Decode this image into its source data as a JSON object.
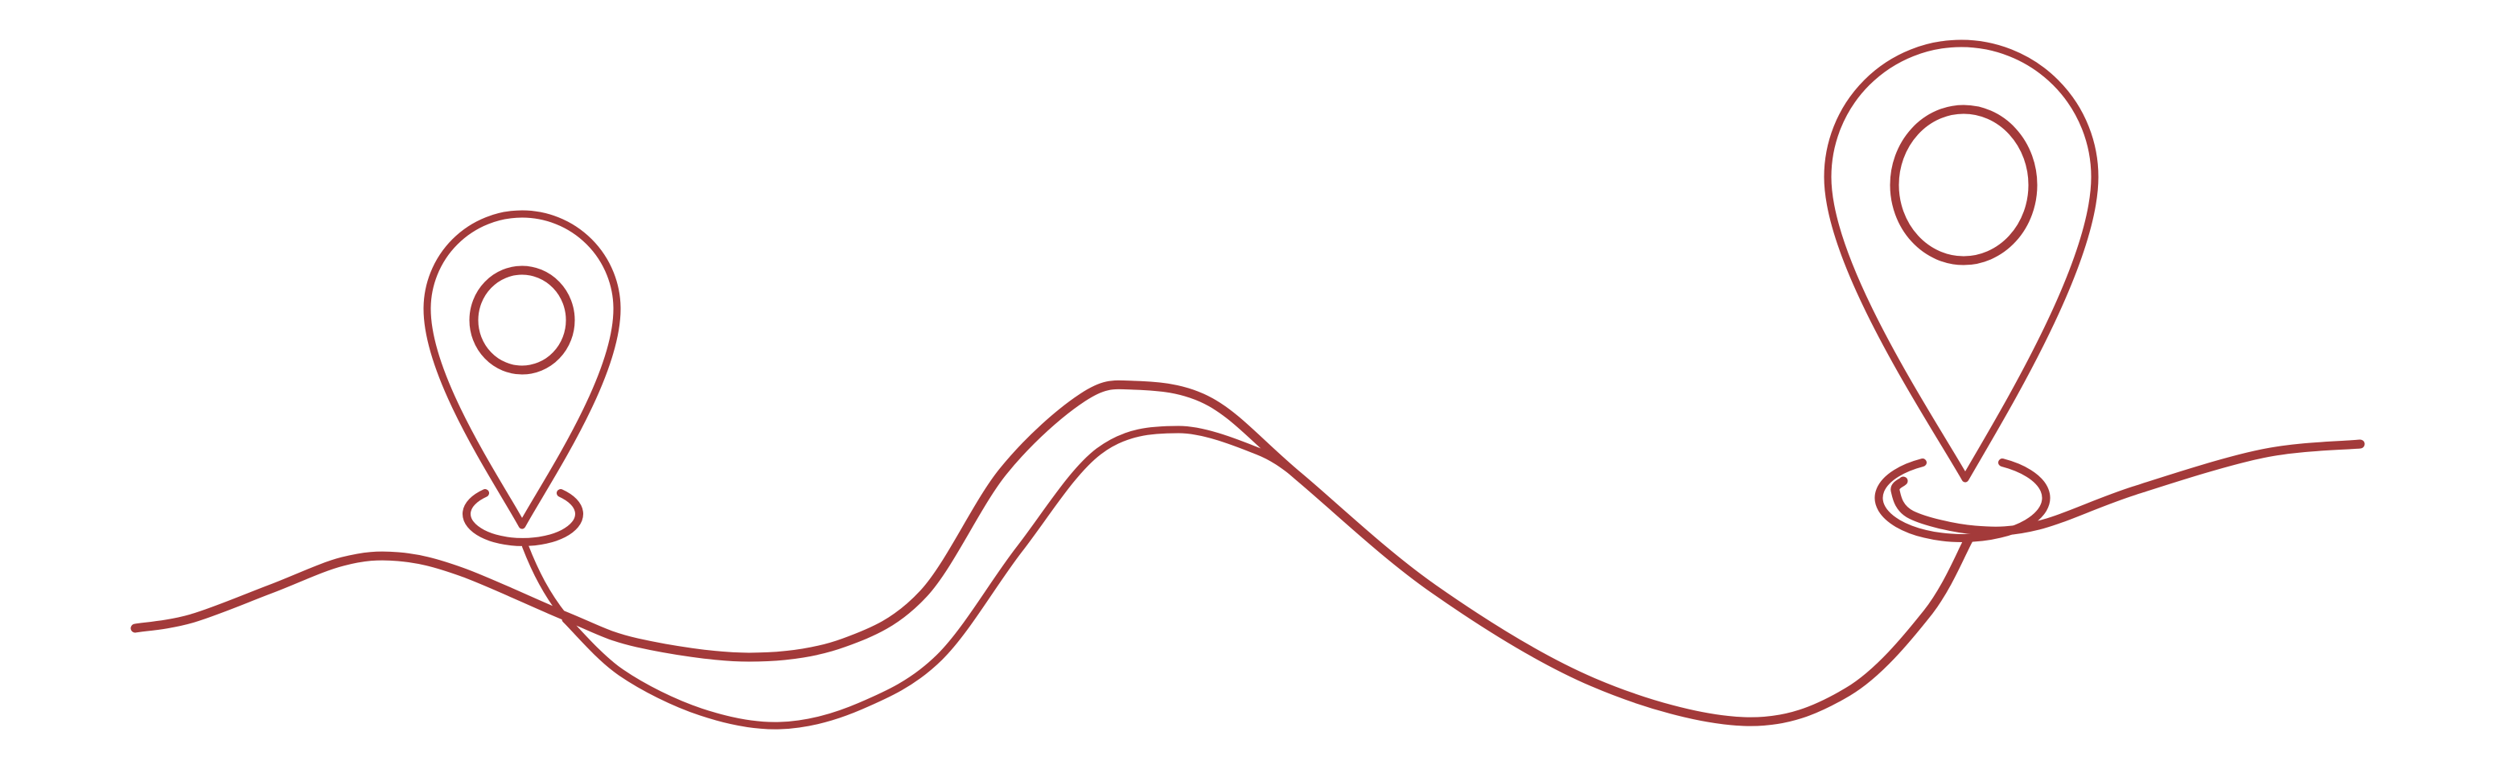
{
  "illustration": {
    "subject": "route-between-two-location-pins",
    "icons": [
      "map-pin-icon",
      "map-pin-icon",
      "route-line"
    ],
    "colors": {
      "stroke": "#a33a3a",
      "background": "#ffffff"
    }
  }
}
